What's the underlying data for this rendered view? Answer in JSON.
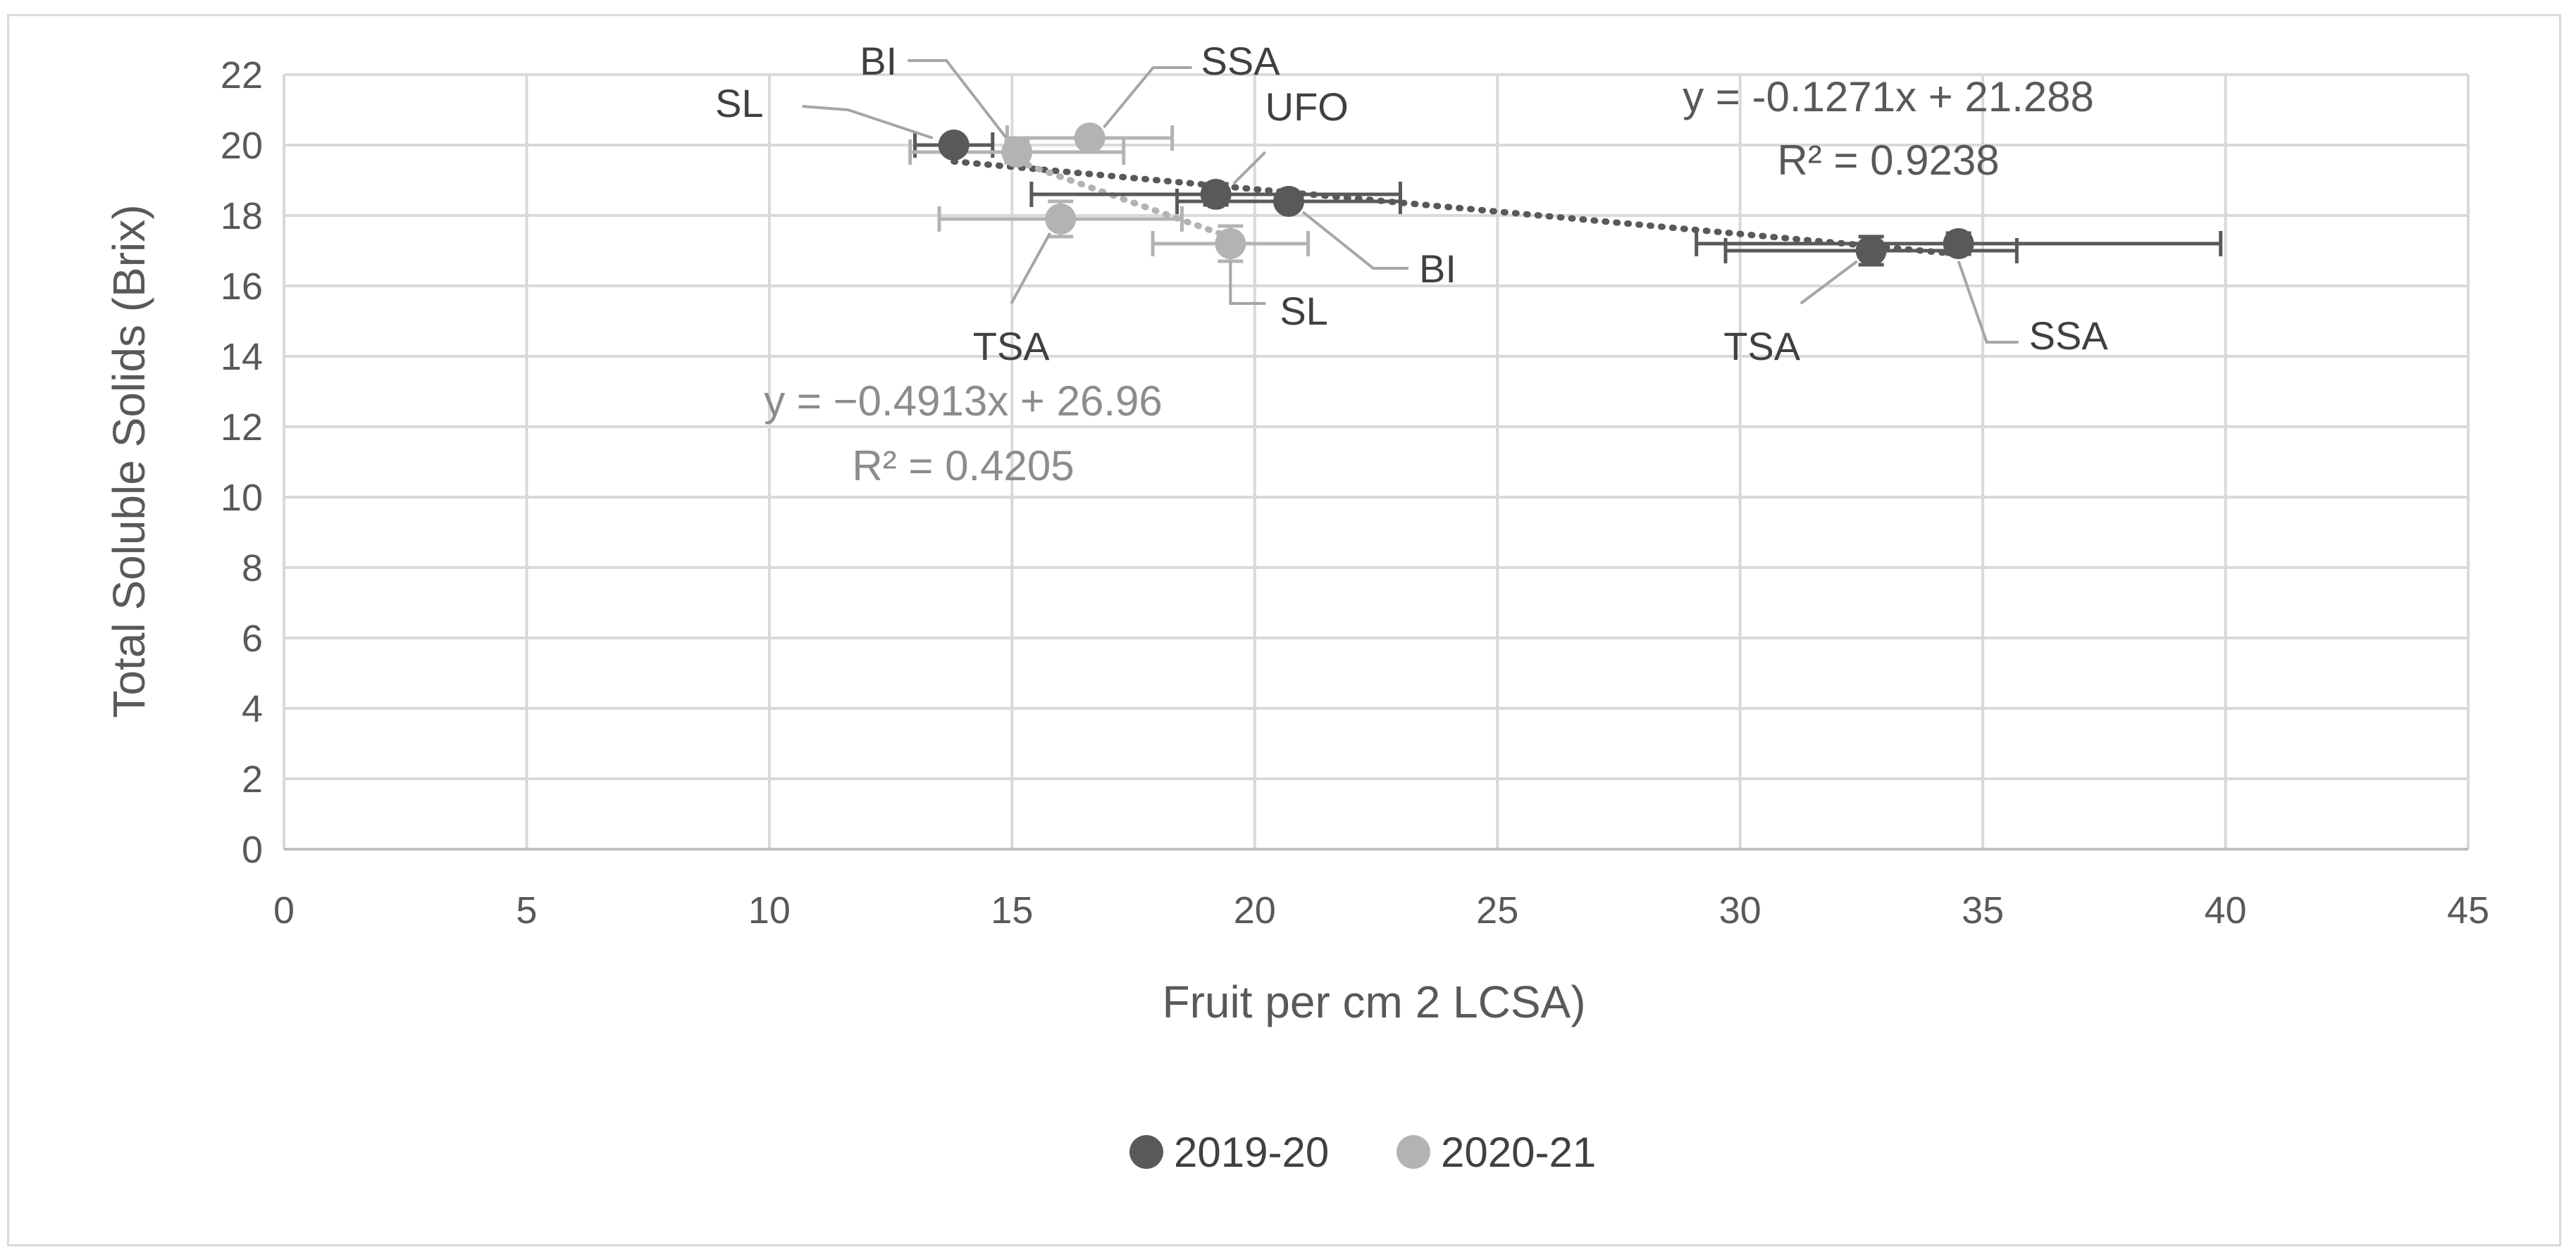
{
  "chart_data": {
    "type": "scatter",
    "title": "",
    "xlabel": "Fruit per cm 2 LCSA)",
    "ylabel": "Total Soluble Solids (Brix)",
    "xlim": [
      0,
      45
    ],
    "ylim": [
      0,
      22
    ],
    "xticks": [
      0,
      5,
      10,
      15,
      20,
      25,
      30,
      35,
      40,
      45
    ],
    "yticks": [
      0,
      2,
      4,
      6,
      8,
      10,
      12,
      14,
      16,
      18,
      20,
      22
    ],
    "grid": true,
    "legend_position": "bottom",
    "series": [
      {
        "name": "2019-20",
        "color": "#595959",
        "points": [
          {
            "label": "SL",
            "x": 13.8,
            "y": 20.0,
            "xerr": 0.8,
            "yerr": 0.2
          },
          {
            "label": "UFO",
            "x": 19.2,
            "y": 18.6,
            "xerr": 3.8,
            "yerr": 0.3
          },
          {
            "label": "BI",
            "x": 20.7,
            "y": 18.4,
            "xerr": 2.3,
            "yerr": 0.2
          },
          {
            "label": "TSA",
            "x": 32.7,
            "y": 17.0,
            "xerr": 3.0,
            "yerr": 0.4
          },
          {
            "label": "SSA",
            "x": 34.5,
            "y": 17.2,
            "xerr": 5.4,
            "yerr": 0.3
          }
        ],
        "trendline": {
          "slope": -0.1271,
          "intercept": 21.288,
          "equation": "y = -0.1271x + 21.288",
          "r2": "R² = 0.9238"
        }
      },
      {
        "name": "2020-21",
        "color": "#b3b3b3",
        "points": [
          {
            "label": "BI",
            "x": 15.1,
            "y": 19.8,
            "xerr": 2.2,
            "yerr": 0.3
          },
          {
            "label": "SSA",
            "x": 16.6,
            "y": 20.2,
            "xerr": 1.7,
            "yerr": 0.2
          },
          {
            "label": "TSA",
            "x": 16.0,
            "y": 17.9,
            "xerr": 2.5,
            "yerr": 0.5
          },
          {
            "label": "SL",
            "x": 19.5,
            "y": 17.2,
            "xerr": 1.6,
            "yerr": 0.5
          }
        ],
        "trendline": {
          "slope": -0.4913,
          "intercept": 26.96,
          "equation": "y = −0.4913x + 26.96",
          "r2": "R² = 0.4205"
        }
      }
    ]
  }
}
